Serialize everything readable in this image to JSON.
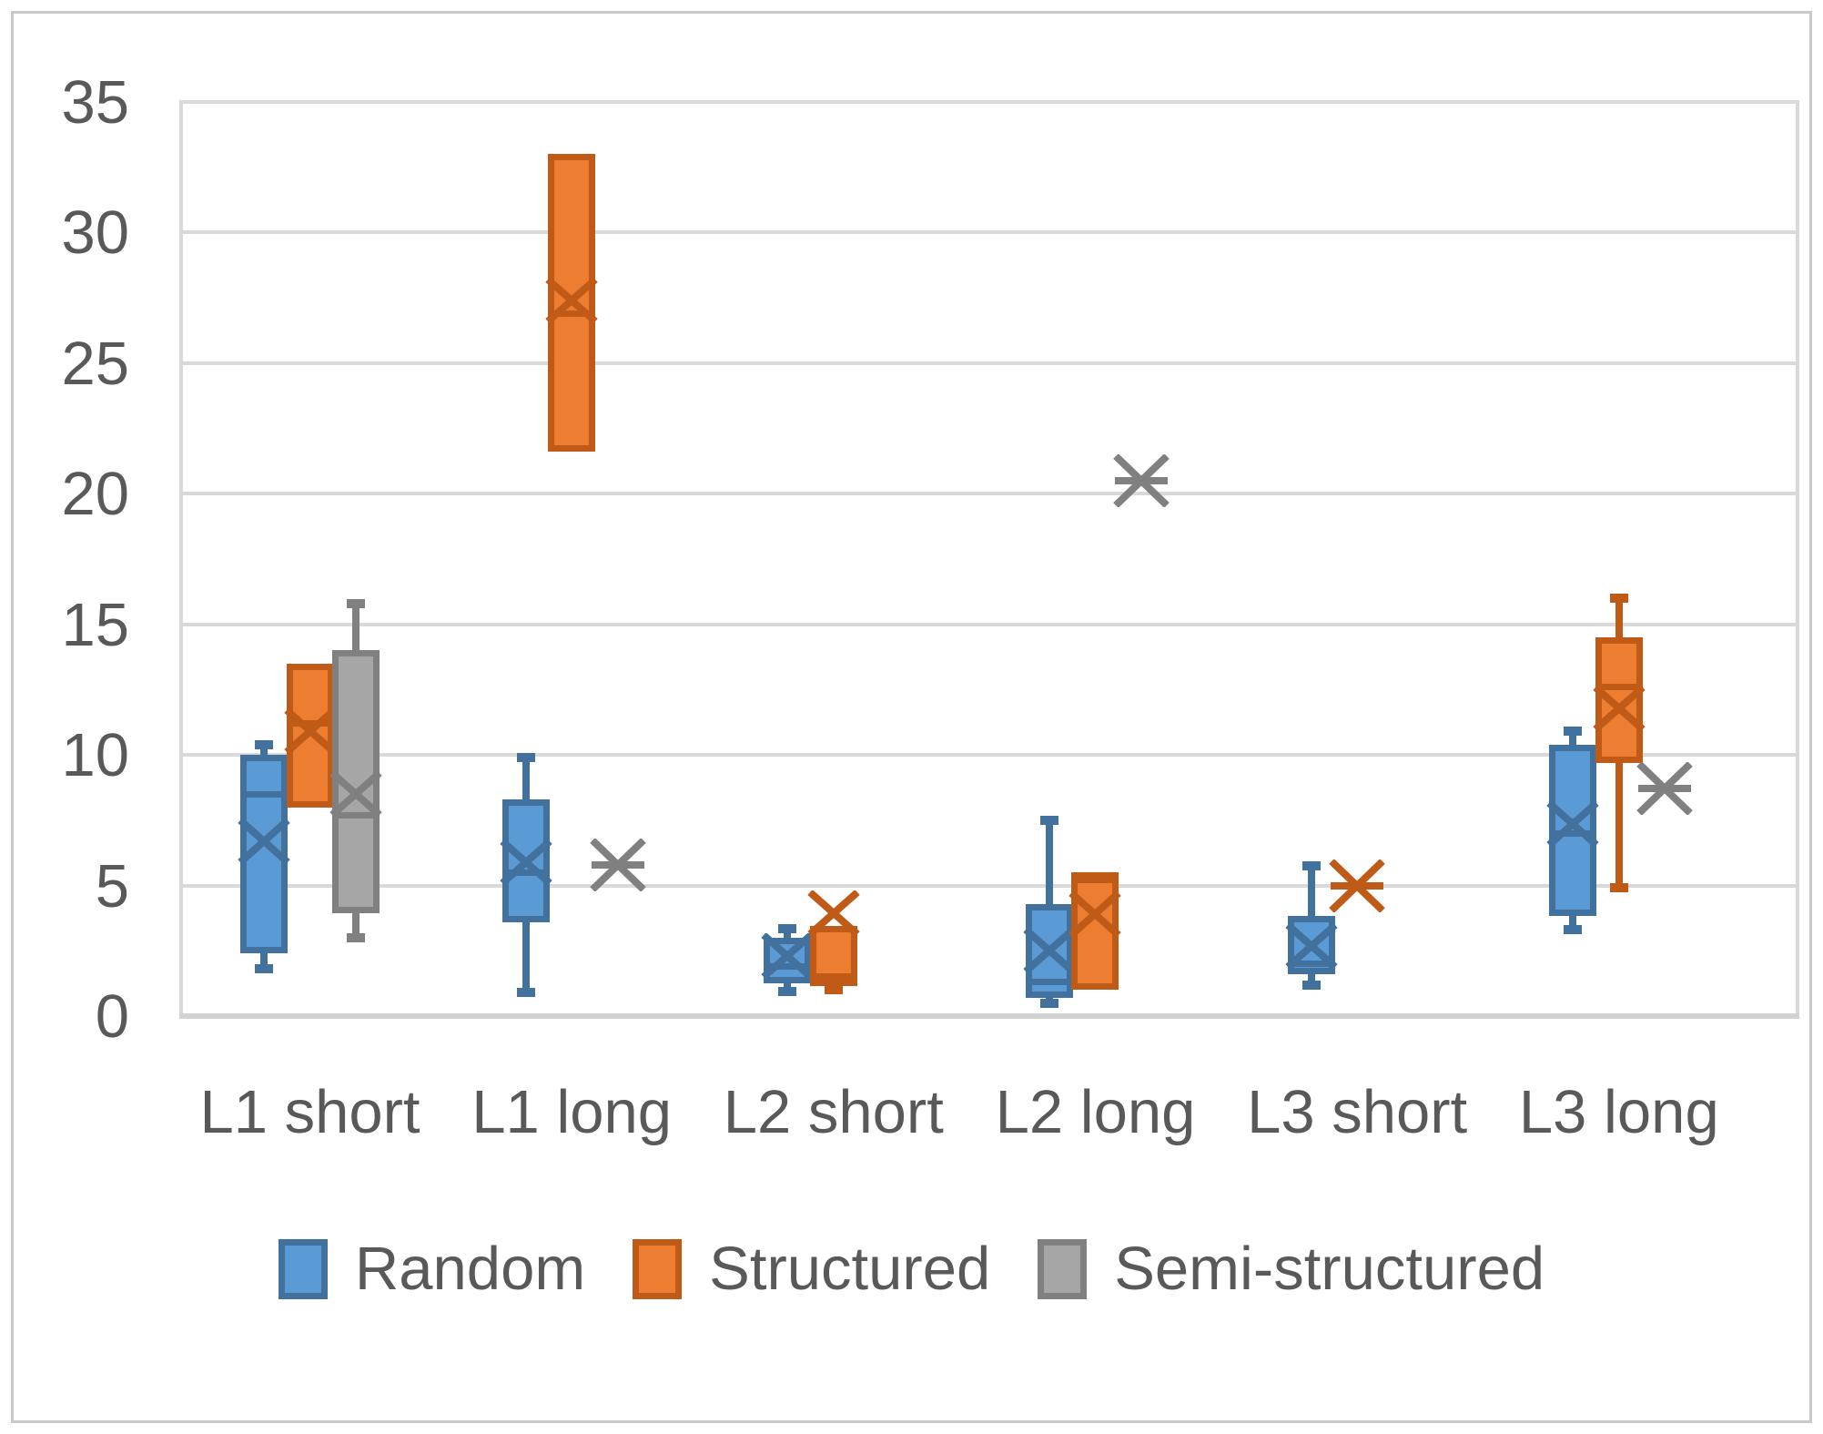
{
  "chart_data": {
    "type": "box",
    "title": "",
    "xlabel": "",
    "ylabel": "",
    "categories": [
      "L1 short",
      "L1 long",
      "L2 short",
      "L2 long",
      "L3 short",
      "L3 long"
    ],
    "y_axis": {
      "min": 0,
      "max": 35,
      "step": 5,
      "tick_labels": [
        "0",
        "5",
        "10",
        "15",
        "20",
        "25",
        "30",
        "35"
      ],
      "grid": true
    },
    "legend_position": "bottom",
    "colors": {
      "gridline": "#d9d9d9",
      "axis_text": "#595959",
      "chart_border": "#c9c9c9",
      "background": "#ffffff"
    },
    "series": [
      {
        "name": "Random",
        "fill": "#5b9bd5",
        "line": "#41719c",
        "boxes": [
          {
            "category": "L1 short",
            "min": 1.8,
            "q1": 2.4,
            "median": 8.5,
            "mean": 6.7,
            "q3": 10.0,
            "max": 10.4
          },
          {
            "category": "L1 long",
            "min": 0.9,
            "q1": 3.6,
            "median": 5.5,
            "mean": 5.9,
            "q3": 8.3,
            "max": 9.9
          },
          {
            "category": "L2 short",
            "min": 0.95,
            "q1": 1.25,
            "median": 1.9,
            "mean": 2.3,
            "q3": 3.0,
            "max": 3.35
          },
          {
            "category": "L2 long",
            "min": 0.5,
            "q1": 0.7,
            "median": 1.3,
            "mean": 2.5,
            "q3": 4.3,
            "max": 7.5
          },
          {
            "category": "L3 short",
            "min": 1.2,
            "q1": 1.6,
            "median": 2.0,
            "mean": 2.7,
            "q3": 3.85,
            "max": 5.75
          },
          {
            "category": "L3 long",
            "min": 3.3,
            "q1": 3.85,
            "median": 7.0,
            "mean": 7.35,
            "q3": 10.4,
            "max": 10.9
          }
        ]
      },
      {
        "name": "Structured",
        "fill": "#ed7d31",
        "line": "#bf5b17",
        "boxes": [
          {
            "category": "L1 short",
            "min": 8.0,
            "q1": 8.0,
            "median": 11.2,
            "mean": 10.9,
            "q3": 13.5,
            "max": 13.5
          },
          {
            "category": "L1 long",
            "min": 21.6,
            "q1": 21.6,
            "median": 26.9,
            "mean": 27.4,
            "q3": 33.0,
            "max": 33.0
          },
          {
            "category": "L2 short",
            "min": 1.0,
            "q1": 1.15,
            "median": 1.5,
            "mean": 3.95,
            "q3": 3.45,
            "max": 3.45
          },
          {
            "category": "L2 long",
            "min": 1.0,
            "q1": 1.0,
            "median": 5.2,
            "mean": 3.9,
            "q3": 5.5,
            "max": 5.5
          },
          {
            "category": "L3 short",
            "marker_only": true,
            "mean": 5.0
          },
          {
            "category": "L3 long",
            "min": 4.9,
            "q1": 9.7,
            "median": 12.6,
            "mean": 11.8,
            "q3": 14.5,
            "max": 16.0
          }
        ]
      },
      {
        "name": "Semi-structured",
        "fill": "#a6a6a6",
        "line": "#808080",
        "boxes": [
          {
            "category": "L1 short",
            "min": 3.0,
            "q1": 3.95,
            "median": 7.7,
            "mean": 8.5,
            "q3": 14.0,
            "max": 15.8
          },
          {
            "category": "L1 long",
            "marker_only": true,
            "mean": 5.8
          },
          null,
          {
            "category": "L2 long",
            "marker_only": true,
            "mean": 20.5
          },
          null,
          {
            "category": "L3 long",
            "marker_only": true,
            "mean": 8.7
          }
        ]
      }
    ],
    "legend": [
      {
        "label": "Random"
      },
      {
        "label": "Structured"
      },
      {
        "label": "Semi-structured"
      }
    ]
  }
}
